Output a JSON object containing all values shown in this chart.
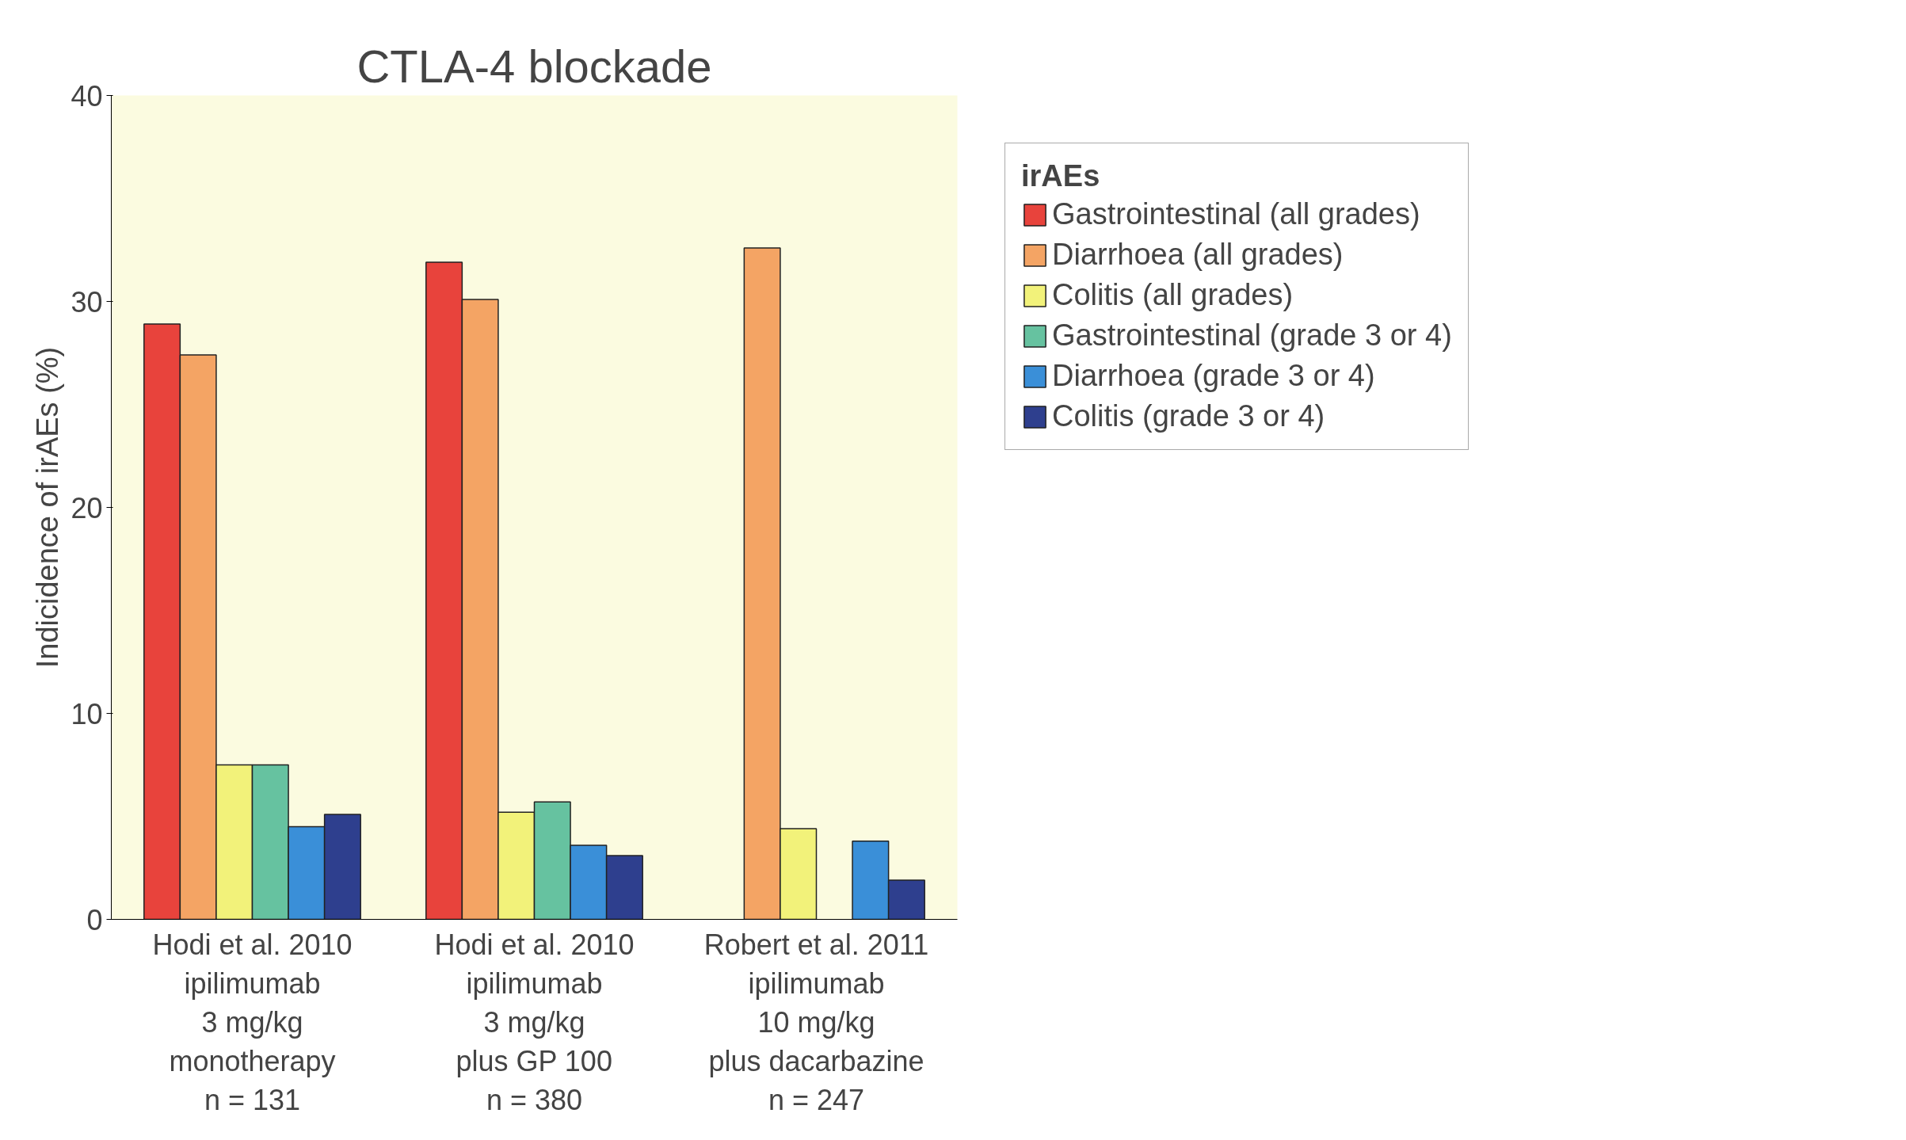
{
  "chart_data": {
    "type": "bar",
    "title": "CTLA-4 blockade",
    "ylabel": "Indicidence of irAEs (%)",
    "legend_title": "irAEs",
    "categories": [
      "Hodi et al. 2010\nipilimumab\n3 mg/kg\nmonotherapy\nn = 131",
      "Hodi et al. 2010\nipilimumab\n3 mg/kg\nplus GP 100\nn = 380",
      "Robert et al. 2011\nipilimumab\n10 mg/kg\nplus dacarbazine\nn = 247"
    ],
    "series": [
      {
        "name": "Gastrointestinal (all grades)",
        "color": "#e8433c",
        "values": [
          28.9,
          31.9,
          null
        ]
      },
      {
        "name": "Diarrhoea (all grades)",
        "color": "#f4a464",
        "values": [
          27.4,
          30.1,
          32.6
        ]
      },
      {
        "name": "Colitis (all grades)",
        "color": "#f2f27a",
        "values": [
          7.5,
          5.2,
          4.4
        ]
      },
      {
        "name": "Gastrointestinal (grade 3 or 4)",
        "color": "#66c2a0",
        "values": [
          7.5,
          5.7,
          null
        ]
      },
      {
        "name": "Diarrhoea (grade 3 or 4)",
        "color": "#3a8fd8",
        "values": [
          4.5,
          3.6,
          3.8
        ]
      },
      {
        "name": "Colitis (grade 3 or 4)",
        "color": "#2e3f8e",
        "values": [
          5.1,
          3.1,
          1.9
        ]
      }
    ],
    "ylim": [
      0,
      40
    ],
    "yticks": [
      0,
      10,
      20,
      30,
      40
    ],
    "grid": false,
    "legend": "right"
  }
}
